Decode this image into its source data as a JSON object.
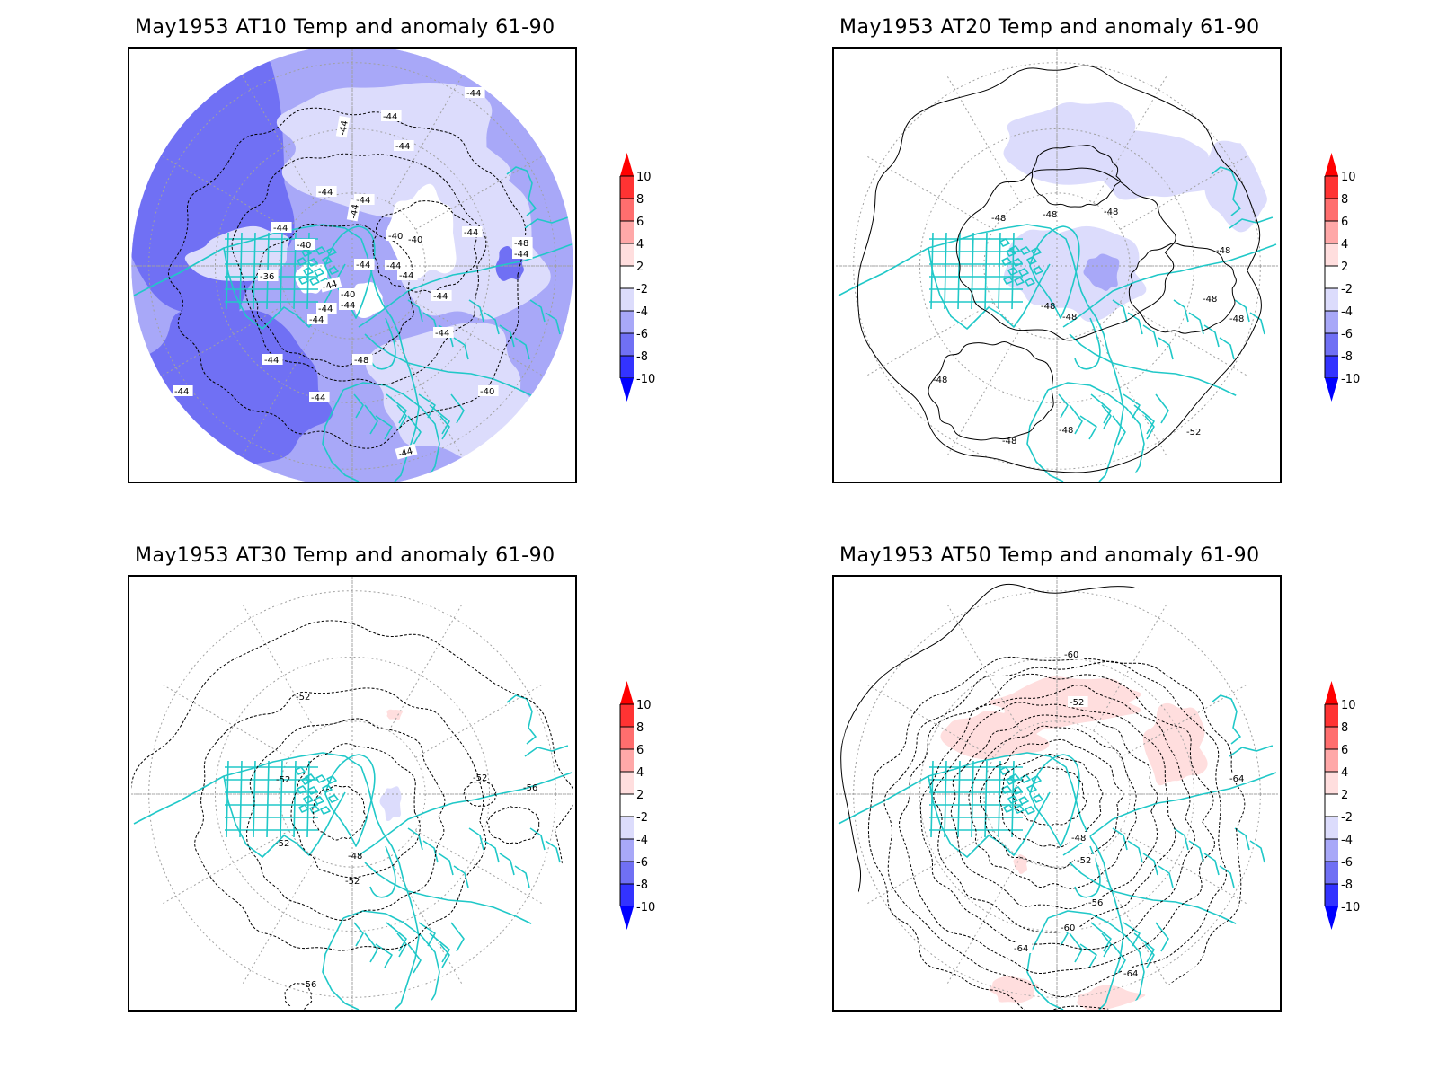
{
  "chart_data": [
    {
      "type": "heatmap",
      "projection": "north-polar-stereographic",
      "title": "May1953 AT10 Temp and anomaly 61-90",
      "fill_variable": "temperature anomaly (vs 1961-90)",
      "contour_variable": "temperature",
      "contour_labels": [
        "-44",
        "-44",
        "-44",
        "-44",
        "-44",
        "-44",
        "-44",
        "-44",
        "-40",
        "-40",
        "-40",
        "-44",
        "-44",
        "-48",
        "-44",
        "-44",
        "-44",
        "-36",
        "-44",
        "-40",
        "-44",
        "-44",
        "-44",
        "-44",
        "-44",
        "-44",
        "-48",
        "-44",
        "-40",
        "-44",
        "-44"
      ],
      "dominant_anomaly_classes": [
        "-2 to -4",
        "-4 to -6",
        "-6 to -8",
        "-2 to 2"
      ],
      "grid": true,
      "coastline_color": "#20c8c8"
    },
    {
      "type": "heatmap",
      "projection": "north-polar-stereographic",
      "title": "May1953 AT20 Temp and anomaly 61-90",
      "fill_variable": "temperature anomaly (vs 1961-90)",
      "contour_variable": "temperature",
      "contour_labels": [
        "-48",
        "-48",
        "-48",
        "-48",
        "-48",
        "-48",
        "-48",
        "-48",
        "-48",
        "-48",
        "-48",
        "-52"
      ],
      "dominant_anomaly_classes": [
        "-2 to 2",
        "-2 to -4",
        "-4 to -6"
      ],
      "grid": true,
      "coastline_color": "#20c8c8"
    },
    {
      "type": "heatmap",
      "projection": "north-polar-stereographic",
      "title": "May1953 AT30 Temp and anomaly 61-90",
      "fill_variable": "temperature anomaly (vs 1961-90)",
      "contour_variable": "temperature",
      "contour_labels": [
        "-52",
        "-52",
        "-52",
        "-56",
        "-52",
        "-48",
        "-52",
        "-56"
      ],
      "dominant_anomaly_classes": [
        "-2 to 2",
        "2 to 4",
        "-2 to -4"
      ],
      "grid": true,
      "coastline_color": "#20c8c8"
    },
    {
      "type": "heatmap",
      "projection": "north-polar-stereographic",
      "title": "May1953 AT50 Temp and anomaly 61-90",
      "fill_variable": "temperature anomaly (vs 1961-90)",
      "contour_variable": "temperature",
      "contour_labels": [
        "-60",
        "-52",
        "-64",
        "-48",
        "-52",
        "-56",
        "-60",
        "-64",
        "-64"
      ],
      "dominant_anomaly_classes": [
        "-2 to 2",
        "2 to 4"
      ],
      "grid": true,
      "coastline_color": "#20c8c8"
    }
  ],
  "colorbar": {
    "ticks": [
      "10",
      "8",
      "6",
      "4",
      "2",
      "-2",
      "-4",
      "-6",
      "-8",
      "-10"
    ],
    "bins": [
      {
        "range": ">10",
        "color": "#ff0000"
      },
      {
        "range": "8 to 10",
        "color": "#ff3333"
      },
      {
        "range": "6 to 8",
        "color": "#ff6e6e"
      },
      {
        "range": "4 to 6",
        "color": "#ffa8a8"
      },
      {
        "range": "2 to 4",
        "color": "#ffdede"
      },
      {
        "range": "-2 to 2",
        "color": "#ffffff"
      },
      {
        "range": "-4 to -2",
        "color": "#dcdcfc"
      },
      {
        "range": "-6 to -4",
        "color": "#a8a8f8"
      },
      {
        "range": "-8 to -6",
        "color": "#7070f4"
      },
      {
        "range": "-10 to -8",
        "color": "#3333ff"
      },
      {
        "range": "<-10",
        "color": "#0000ff"
      }
    ]
  },
  "colors": {
    "coast": "#20c8c8",
    "grid": "#a0a0a0",
    "contour": "#000000"
  }
}
